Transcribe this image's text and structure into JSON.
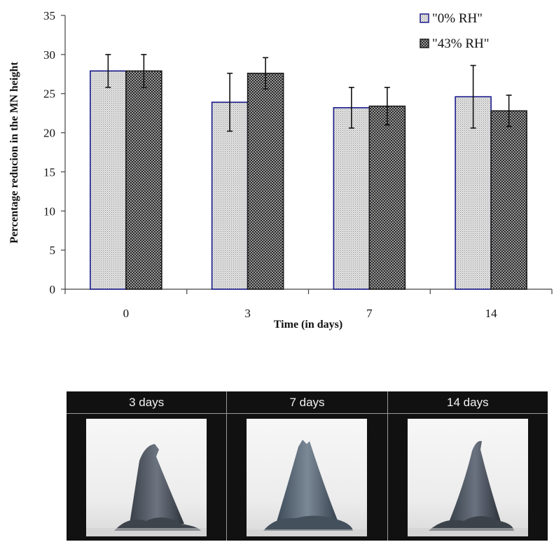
{
  "chart_data": {
    "type": "bar",
    "categories": [
      "0",
      "3",
      "7",
      "14"
    ],
    "series": [
      {
        "name": "\"0% RH\"",
        "values": [
          27.9,
          23.9,
          23.2,
          24.6
        ],
        "errors": [
          2.1,
          3.7,
          2.6,
          4.0
        ],
        "fill": "#d9d9d9",
        "border": "#1a1a8c",
        "pattern": "fine-dots"
      },
      {
        "name": "\"43% RH\"",
        "values": [
          27.9,
          27.6,
          23.4,
          22.8
        ],
        "errors": [
          2.1,
          2.0,
          2.4,
          2.0
        ],
        "fill": "#5a5a5a",
        "border": "#1a1a1a",
        "pattern": "checker"
      }
    ],
    "xlabel": "Time (in days)",
    "ylabel": "Percentage reducion in the MN height",
    "ylim": [
      0,
      35
    ],
    "yticks": [
      0,
      5,
      10,
      15,
      20,
      25,
      30,
      35
    ],
    "grid": false,
    "legend_position": "top-right"
  },
  "panels": [
    {
      "label": "3 days",
      "image": "microneedle-3-days"
    },
    {
      "label": "7 days",
      "image": "microneedle-7-days"
    },
    {
      "label": "14 days",
      "image": "microneedle-14-days"
    }
  ]
}
